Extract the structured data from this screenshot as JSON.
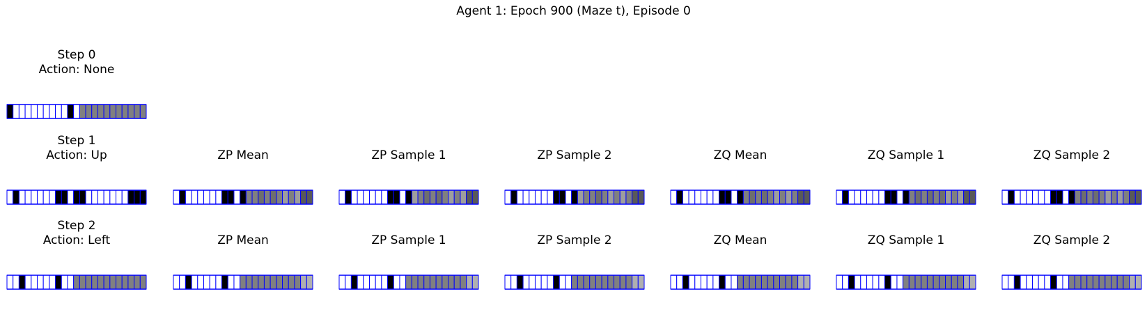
{
  "figure_title": "Agent 1: Epoch 900 (Maze t), Episode 0",
  "palette": {
    "frame": "#0000ff",
    "levels": [
      "#ffffff",
      "#000000",
      "#808080",
      "#595959",
      "#9e9e9e",
      "#b0b0b0",
      "#6e6e6e",
      "#4d4d4d"
    ]
  },
  "rows": [
    {
      "step_label": "Step 0",
      "action_label": "Action: None",
      "panels": [
        {
          "title": "",
          "cells": [
            1,
            0,
            0,
            0,
            0,
            0,
            0,
            0,
            0,
            0,
            1,
            0,
            2,
            2,
            2,
            2,
            2,
            2,
            2,
            2,
            2,
            2,
            2
          ]
        }
      ]
    },
    {
      "step_label": "Step 1",
      "action_label": "Action: Up",
      "panels": [
        {
          "title": "",
          "cells": [
            0,
            1,
            0,
            0,
            0,
            0,
            0,
            0,
            1,
            1,
            0,
            1,
            1,
            0,
            0,
            0,
            0,
            0,
            0,
            0,
            1,
            1,
            1
          ]
        },
        {
          "title": "ZP Mean",
          "cells": [
            0,
            1,
            0,
            0,
            0,
            0,
            0,
            0,
            1,
            1,
            0,
            1,
            2,
            2,
            6,
            2,
            6,
            2,
            4,
            2,
            4,
            3,
            3
          ]
        },
        {
          "title": "ZP Sample 1",
          "cells": [
            0,
            1,
            0,
            0,
            0,
            0,
            0,
            0,
            1,
            1,
            0,
            1,
            4,
            2,
            6,
            2,
            6,
            2,
            4,
            2,
            4,
            3,
            3
          ]
        },
        {
          "title": "ZP Sample 2",
          "cells": [
            0,
            1,
            0,
            0,
            0,
            0,
            0,
            0,
            1,
            1,
            0,
            1,
            4,
            2,
            2,
            6,
            2,
            4,
            2,
            4,
            2,
            3,
            3
          ]
        },
        {
          "title": "ZQ Mean",
          "cells": [
            0,
            1,
            0,
            0,
            0,
            0,
            0,
            0,
            1,
            1,
            0,
            1,
            2,
            6,
            2,
            6,
            2,
            4,
            2,
            4,
            2,
            3,
            3
          ]
        },
        {
          "title": "ZQ Sample 1",
          "cells": [
            0,
            1,
            0,
            0,
            0,
            0,
            0,
            0,
            1,
            1,
            0,
            1,
            2,
            6,
            2,
            6,
            2,
            6,
            4,
            2,
            4,
            3,
            3
          ]
        },
        {
          "title": "ZQ Sample 2",
          "cells": [
            0,
            1,
            0,
            0,
            0,
            0,
            0,
            0,
            1,
            1,
            0,
            1,
            2,
            6,
            2,
            6,
            2,
            4,
            2,
            4,
            2,
            3,
            3
          ]
        }
      ]
    },
    {
      "step_label": "Step 2",
      "action_label": "Action: Left",
      "panels": [
        {
          "title": "",
          "cells": [
            0,
            0,
            1,
            0,
            0,
            0,
            0,
            0,
            1,
            0,
            0,
            2,
            2,
            2,
            2,
            2,
            2,
            2,
            2,
            2,
            2,
            2,
            2
          ]
        },
        {
          "title": "ZP Mean",
          "cells": [
            0,
            0,
            1,
            0,
            0,
            0,
            0,
            0,
            1,
            0,
            0,
            2,
            2,
            2,
            2,
            2,
            2,
            2,
            2,
            2,
            2,
            5,
            5
          ]
        },
        {
          "title": "ZP Sample 1",
          "cells": [
            0,
            0,
            1,
            0,
            0,
            0,
            0,
            0,
            1,
            0,
            0,
            2,
            2,
            2,
            2,
            2,
            2,
            2,
            2,
            2,
            2,
            5,
            5
          ]
        },
        {
          "title": "ZP Sample 2",
          "cells": [
            0,
            0,
            1,
            0,
            0,
            0,
            0,
            0,
            1,
            0,
            0,
            2,
            2,
            2,
            2,
            2,
            2,
            2,
            2,
            2,
            2,
            5,
            5
          ]
        },
        {
          "title": "ZQ Mean",
          "cells": [
            0,
            0,
            1,
            0,
            0,
            0,
            0,
            0,
            1,
            0,
            0,
            2,
            2,
            2,
            2,
            2,
            2,
            2,
            2,
            2,
            2,
            5,
            5
          ]
        },
        {
          "title": "ZQ Sample 1",
          "cells": [
            0,
            0,
            1,
            0,
            0,
            0,
            0,
            0,
            1,
            0,
            0,
            2,
            2,
            2,
            2,
            2,
            2,
            2,
            2,
            2,
            2,
            5,
            5
          ]
        },
        {
          "title": "ZQ Sample 2",
          "cells": [
            0,
            0,
            1,
            0,
            0,
            0,
            0,
            0,
            1,
            0,
            0,
            2,
            2,
            2,
            2,
            2,
            2,
            2,
            2,
            2,
            2,
            5,
            5
          ]
        }
      ]
    }
  ]
}
